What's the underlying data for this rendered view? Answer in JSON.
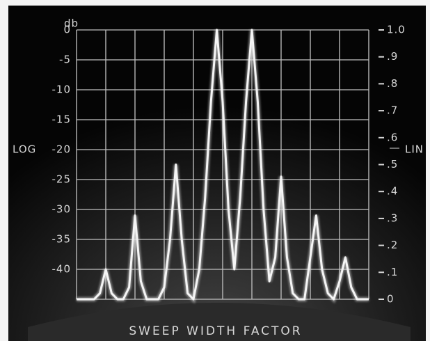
{
  "chart_data": {
    "type": "line",
    "xlabel": "SWEEP WIDTH FACTOR",
    "yunit": "db",
    "ylabel": "LOG",
    "y2label": "LIN",
    "ylim": [
      -45,
      0
    ],
    "yticks": [
      0,
      -5,
      -10,
      -15,
      -20,
      -25,
      -30,
      -35,
      -40
    ],
    "y2lim": [
      0,
      1
    ],
    "y2ticks": [
      {
        "value": 1.0,
        "label": "1.0"
      },
      {
        "value": 0.9,
        "label": ".9"
      },
      {
        "value": 0.8,
        "label": ".8"
      },
      {
        "value": 0.7,
        "label": ".7"
      },
      {
        "value": 0.6,
        "label": ".6"
      },
      {
        "value": 0.5,
        "label": ".5"
      },
      {
        "value": 0.4,
        "label": ".4"
      },
      {
        "value": 0.3,
        "label": ".3"
      },
      {
        "value": 0.2,
        "label": ".2"
      },
      {
        "value": 0.1,
        "label": ".1"
      },
      0
    ],
    "grid": true,
    "color": "#f5f5f5",
    "categories": [
      null,
      null,
      null,
      null,
      null,
      null,
      null,
      null,
      null,
      null,
      null,
      null,
      null,
      null,
      null,
      null,
      null,
      null,
      null,
      null,
      null,
      null,
      null,
      null,
      null,
      null,
      null,
      null,
      null,
      null,
      null,
      null,
      null,
      null,
      null,
      null,
      null,
      null,
      null,
      null,
      null,
      null,
      null,
      null,
      null,
      null,
      null,
      null,
      null,
      null,
      null
    ],
    "values": [
      -45,
      -45,
      -45,
      -45,
      -44,
      -40,
      -44,
      -45,
      -45,
      -43,
      -31,
      -42,
      -45,
      -45,
      -45,
      -43,
      -35,
      -22.5,
      -35,
      -44,
      -45,
      -40,
      -28,
      -12,
      0,
      -12,
      -30,
      -40,
      -28,
      -12,
      0,
      -12,
      -30,
      -42,
      -38,
      -24.5,
      -38,
      -44,
      -45,
      -45,
      -38,
      -31,
      -40,
      -44,
      -45,
      -42,
      -38,
      -43,
      -45,
      -45,
      -45
    ]
  }
}
